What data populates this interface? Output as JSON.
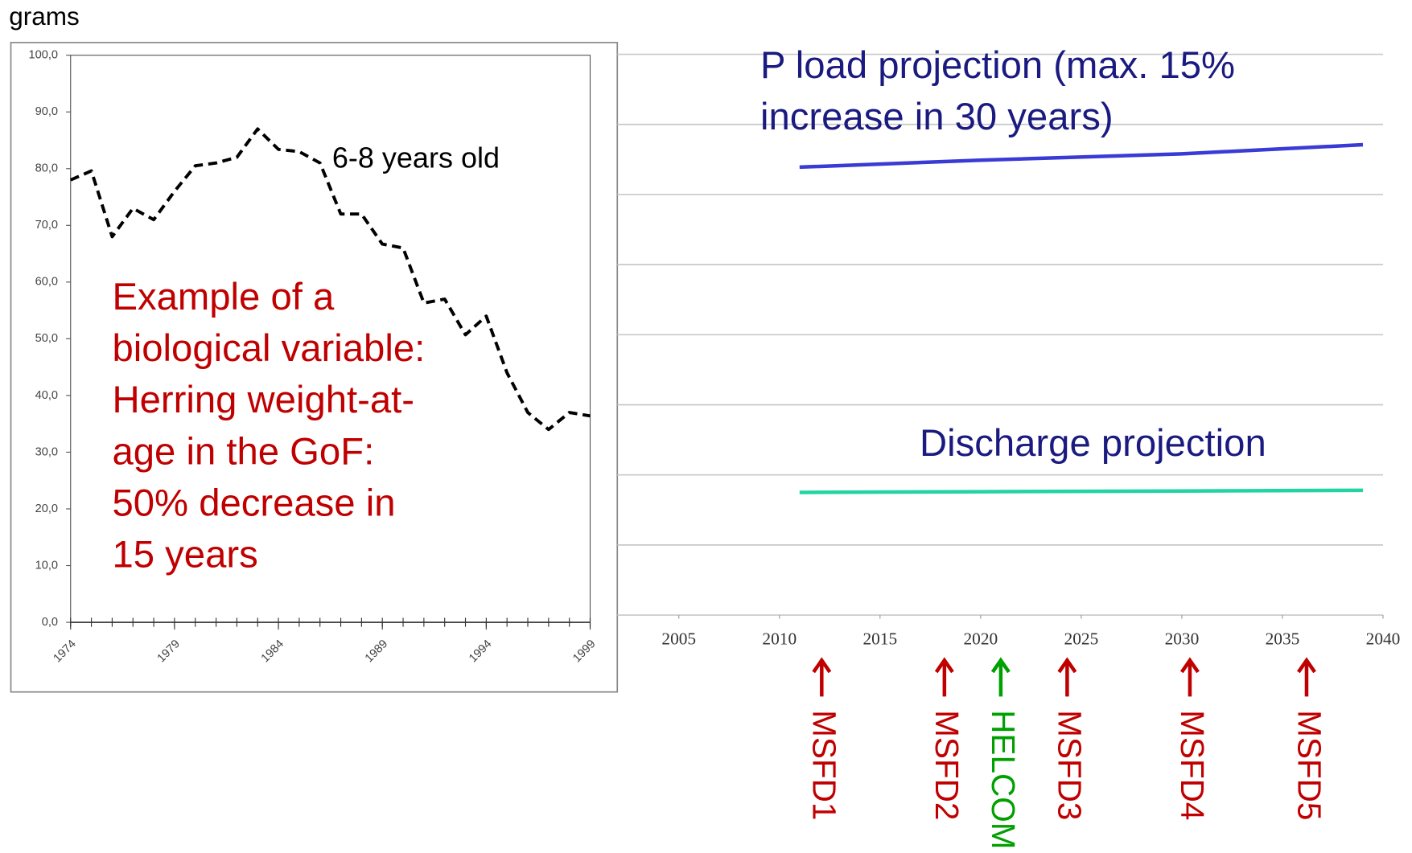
{
  "chart_data": [
    {
      "type": "line",
      "ylabel": "grams",
      "x": [
        1974,
        1975,
        1976,
        1977,
        1978,
        1979,
        1980,
        1981,
        1982,
        1983,
        1984,
        1985,
        1986,
        1987,
        1988,
        1989,
        1990,
        1991,
        1992,
        1993,
        1994,
        1995,
        1996,
        1997,
        1998,
        1999
      ],
      "series": [
        {
          "name": "6-8 years old",
          "color": "#000000",
          "dashed": true,
          "values": [
            78,
            79.6,
            68,
            73,
            71,
            76,
            80.5,
            81,
            82,
            87,
            83.4,
            83,
            81,
            72,
            72,
            66.7,
            66,
            56.3,
            57,
            50.7,
            54,
            44,
            37,
            34,
            37,
            36.4
          ]
        }
      ],
      "xlim": [
        1974,
        1999
      ],
      "xticks": [
        1974,
        1979,
        1984,
        1989,
        1994,
        1999
      ],
      "xticks_minor": [
        1974,
        1975,
        1976,
        1977,
        1978,
        1979,
        1980,
        1981,
        1982,
        1983,
        1984,
        1985,
        1986,
        1987,
        1988,
        1989,
        1990,
        1991,
        1992,
        1993,
        1994,
        1995,
        1996,
        1997,
        1998,
        1999
      ],
      "ylim": [
        0,
        100
      ],
      "yticks": [
        {
          "value": 0,
          "label": "0,0"
        },
        {
          "value": 10,
          "label": "10,0"
        },
        {
          "value": 20,
          "label": "20,0"
        },
        {
          "value": 30,
          "label": "30,0"
        },
        {
          "value": 40,
          "label": "40,0"
        },
        {
          "value": 50,
          "label": "50,0"
        },
        {
          "value": 60,
          "label": "60,0"
        },
        {
          "value": 70,
          "label": "70,0"
        },
        {
          "value": 80,
          "label": "80,0"
        },
        {
          "value": 90,
          "label": "90,0"
        },
        {
          "value": 100,
          "label": "100,0"
        }
      ],
      "annotation": {
        "color": "#c00000",
        "lines": [
          "Example of a",
          "biological variable:",
          "Herring weight-at-",
          "age in the GoF:",
          "50% decrease in",
          "15 years"
        ]
      }
    },
    {
      "type": "line",
      "grid": true,
      "x": [
        2011,
        2020,
        2030,
        2039
      ],
      "series": [
        {
          "name": [
            "P load projection (max. 15%",
            "increase in 30 years)"
          ],
          "color": "#3a3ad6",
          "values": [
            6.39,
            6.49,
            6.58,
            6.71
          ]
        },
        {
          "name": [
            "Discharge projection"
          ],
          "color": "#22d4a4",
          "values": [
            1.75,
            1.76,
            1.77,
            1.78
          ]
        }
      ],
      "label_color": "#1a1a80",
      "xlim": [
        2005,
        2040
      ],
      "xticks": [
        2005,
        2010,
        2015,
        2020,
        2025,
        2030,
        2035,
        2040
      ],
      "ylim": [
        0,
        8
      ],
      "yticks": [
        0,
        1,
        2,
        3,
        4,
        5,
        6,
        7,
        8
      ],
      "markers": [
        {
          "label": "MSFD1",
          "x": 2012.1,
          "color": "#c00000"
        },
        {
          "label": "MSFD2",
          "x": 2018.2,
          "color": "#c00000"
        },
        {
          "label": "HELCOM",
          "x": 2021.0,
          "color": "#00a000"
        },
        {
          "label": "MSFD3",
          "x": 2024.3,
          "color": "#c00000"
        },
        {
          "label": "MSFD4",
          "x": 2030.4,
          "color": "#c00000"
        },
        {
          "label": "MSFD5",
          "x": 2036.2,
          "color": "#c00000"
        }
      ]
    }
  ]
}
